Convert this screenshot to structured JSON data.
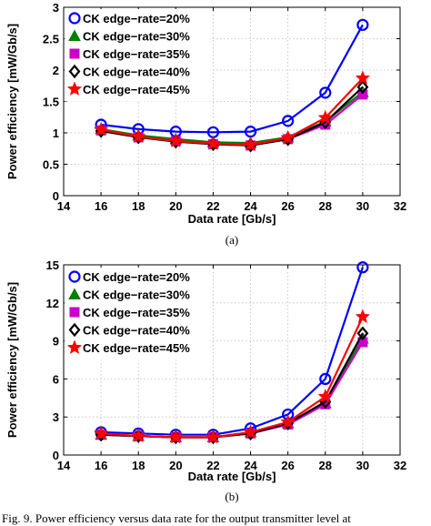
{
  "chart_data": [
    {
      "type": "line",
      "x": [
        16,
        18,
        20,
        22,
        24,
        26,
        28,
        30
      ],
      "xlim": [
        14,
        32
      ],
      "ylim": [
        0,
        3
      ],
      "xticks": [
        "14",
        "16",
        "18",
        "20",
        "22",
        "24",
        "26",
        "28",
        "30",
        "32"
      ],
      "yticks": [
        "0",
        "0.5",
        "1",
        "1.5",
        "2",
        "2.5",
        "3"
      ],
      "xlabel": "Data rate [Gb/s]",
      "ylabel": "Power efficiency [mW/Gb/s]",
      "sublabel": "(a)",
      "grid": true,
      "legend_position": "top-left",
      "series": [
        {
          "name": "CK edge−rate=20%",
          "color": "#0000ff",
          "marker": "circle",
          "values": [
            1.13,
            1.06,
            1.02,
            1.01,
            1.02,
            1.19,
            1.64,
            2.72
          ]
        },
        {
          "name": "CK edge−rate=30%",
          "color": "#008000",
          "marker": "triangle",
          "values": [
            1.06,
            0.96,
            0.9,
            0.85,
            0.84,
            0.93,
            1.18,
            1.65
          ]
        },
        {
          "name": "CK edge−rate=35%",
          "color": "#cc00cc",
          "marker": "square",
          "values": [
            1.04,
            0.93,
            0.87,
            0.82,
            0.8,
            0.9,
            1.13,
            1.61
          ]
        },
        {
          "name": "CK edge−rate=40%",
          "color": "#000000",
          "marker": "diamond",
          "values": [
            1.03,
            0.93,
            0.86,
            0.82,
            0.8,
            0.9,
            1.17,
            1.73
          ]
        },
        {
          "name": "CK edge−rate=45%",
          "color": "#ff0000",
          "marker": "star",
          "values": [
            1.05,
            0.94,
            0.87,
            0.83,
            0.81,
            0.92,
            1.24,
            1.87
          ]
        }
      ]
    },
    {
      "type": "line",
      "x": [
        16,
        18,
        20,
        22,
        24,
        26,
        28,
        30
      ],
      "xlim": [
        14,
        32
      ],
      "ylim": [
        0,
        15
      ],
      "xticks": [
        "14",
        "16",
        "18",
        "20",
        "22",
        "24",
        "26",
        "28",
        "30",
        "32"
      ],
      "yticks": [
        "0",
        "3",
        "6",
        "9",
        "12",
        "15"
      ],
      "xlabel": "Data rate [Gb/s]",
      "ylabel": "Power efficiency [mW/Gb/s]",
      "sublabel": "(b)",
      "grid": true,
      "legend_position": "top-left",
      "series": [
        {
          "name": "CK edge−rate=20%",
          "color": "#0000ff",
          "marker": "circle",
          "values": [
            1.8,
            1.7,
            1.6,
            1.6,
            2.1,
            3.2,
            6.0,
            14.8
          ]
        },
        {
          "name": "CK edge−rate=30%",
          "color": "#008000",
          "marker": "triangle",
          "values": [
            1.6,
            1.5,
            1.4,
            1.4,
            1.8,
            2.5,
            4.1,
            9.2
          ]
        },
        {
          "name": "CK edge−rate=35%",
          "color": "#cc00cc",
          "marker": "square",
          "values": [
            1.6,
            1.5,
            1.4,
            1.4,
            1.7,
            2.4,
            4.0,
            8.9
          ]
        },
        {
          "name": "CK edge−rate=40%",
          "color": "#000000",
          "marker": "diamond",
          "values": [
            1.6,
            1.5,
            1.4,
            1.4,
            1.7,
            2.5,
            4.2,
            9.6
          ]
        },
        {
          "name": "CK edge−rate=45%",
          "color": "#ff0000",
          "marker": "star",
          "values": [
            1.7,
            1.5,
            1.4,
            1.4,
            1.8,
            2.6,
            4.6,
            10.9
          ]
        }
      ]
    }
  ],
  "caption": "Fig. 9. Power efficiency versus data rate for the output transmitter level at"
}
